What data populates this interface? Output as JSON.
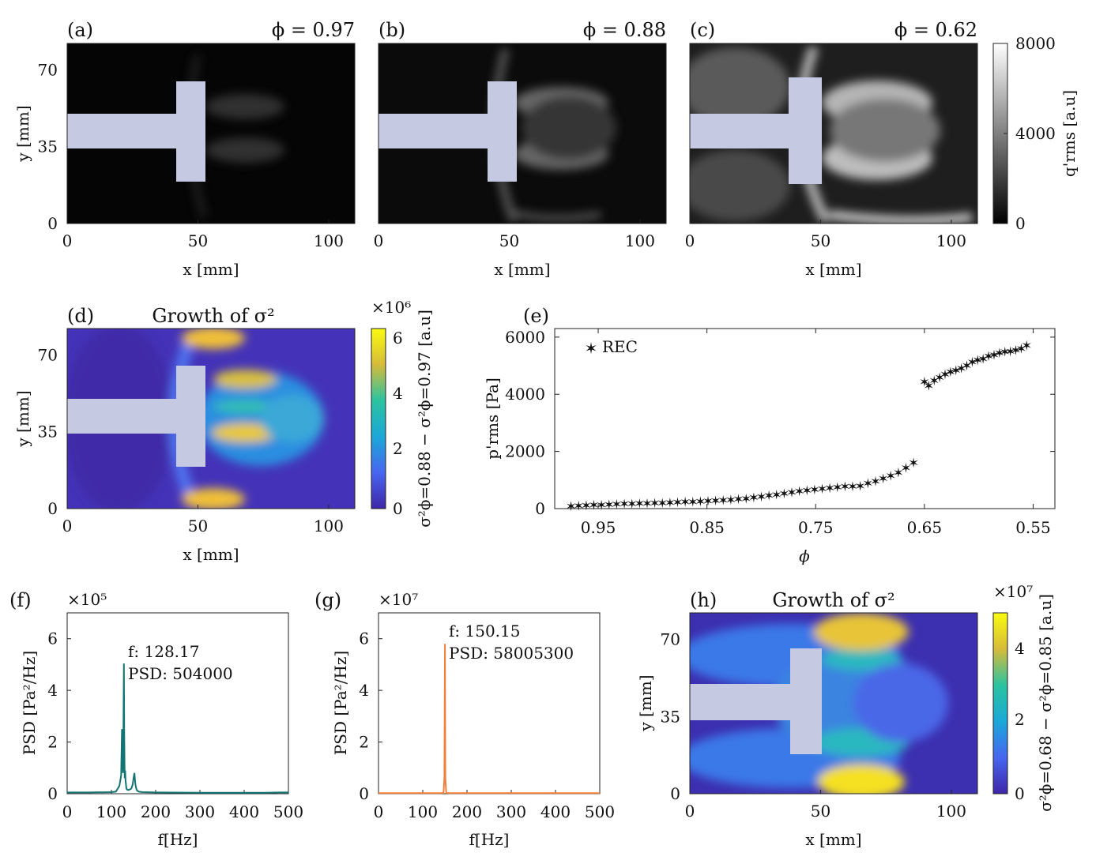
{
  "figure": {
    "panels": {
      "a": {
        "label": "(a)",
        "phi_text": "ϕ = 0.97",
        "xlabel": "x [mm]",
        "ylabel": "y [mm]"
      },
      "b": {
        "label": "(b)",
        "phi_text": "ϕ = 0.88",
        "xlabel": "x [mm]"
      },
      "c": {
        "label": "(c)",
        "phi_text": "ϕ = 0.62",
        "xlabel": "x [mm]",
        "colorbar_label": "q'rms [a.u]",
        "colorbar_ticks": [
          "8000",
          "4000",
          "0"
        ]
      },
      "d": {
        "label": "(d)",
        "title": "Growth of σ²",
        "xlabel": "x [mm]",
        "ylabel": "y [mm]",
        "colorbar_label": "σ²ϕ=0.88 − σ²ϕ=0.97 [a.u]",
        "colorbar_exp": "×10⁶",
        "colorbar_ticks": [
          "6",
          "4",
          "2",
          "0"
        ]
      },
      "e": {
        "label": "(e)",
        "xlabel": "ϕ",
        "ylabel": "p'rms [Pa]",
        "legend": "REC"
      },
      "f": {
        "label": "(f)",
        "xlabel": "f[Hz]",
        "ylabel": "PSD [Pa²/Hz]",
        "exp": "×10⁵",
        "ann_f": "f: 128.17",
        "ann_psd": "PSD: 504000"
      },
      "g": {
        "label": "(g)",
        "xlabel": "f[Hz]",
        "ylabel": "PSD [Pa²/Hz]",
        "exp": "×10⁷",
        "ann_f": "f: 150.15",
        "ann_psd": "PSD: 58005300"
      },
      "h": {
        "label": "(h)",
        "title": "Growth of σ²",
        "xlabel": "x [mm]",
        "ylabel": "y [mm]",
        "colorbar_label": "σ²ϕ=0.68 − σ²ϕ=0.85 [a.u]",
        "colorbar_exp": "×10⁷",
        "colorbar_ticks": [
          "4",
          "2",
          "0"
        ]
      }
    },
    "map_axes": {
      "xticks": [
        "0",
        "50",
        "100"
      ],
      "yticks": [
        "70",
        "35",
        "0"
      ]
    },
    "psd_axes": {
      "xticks": [
        "0",
        "100",
        "200",
        "300",
        "400",
        "500"
      ],
      "yticks": [
        "6",
        "4",
        "2",
        "0"
      ]
    },
    "e_axes": {
      "xticks": [
        "0.95",
        "0.85",
        "0.75",
        "0.65",
        "0.55"
      ],
      "yticks": [
        "6000",
        "4000",
        "2000",
        "0"
      ]
    },
    "colors": {
      "rec": "#137474",
      "psd_f": "#137474",
      "psd_g": "#f07f3c",
      "bluff_body": "#c5cae2"
    }
  },
  "chart_data": [
    {
      "type": "heatmap",
      "panel": "a",
      "title": "ϕ = 0.97",
      "xlabel": "x [mm]",
      "ylabel": "y [mm]",
      "xlim": [
        0,
        110
      ],
      "ylim": [
        0,
        82
      ],
      "colorbar_range": [
        0,
        8000
      ],
      "colorbar_label": "q'rms [a.u]"
    },
    {
      "type": "heatmap",
      "panel": "b",
      "title": "ϕ = 0.88",
      "xlabel": "x [mm]",
      "xlim": [
        0,
        110
      ],
      "ylim": [
        0,
        82
      ],
      "colorbar_range": [
        0,
        8000
      ]
    },
    {
      "type": "heatmap",
      "panel": "c",
      "title": "ϕ = 0.62",
      "xlabel": "x [mm]",
      "xlim": [
        0,
        110
      ],
      "ylim": [
        0,
        82
      ],
      "colorbar_range": [
        0,
        8000
      ],
      "colorbar_label": "q'rms [a.u]"
    },
    {
      "type": "heatmap",
      "panel": "d",
      "title": "Growth of σ²",
      "xlabel": "x [mm]",
      "ylabel": "y [mm]",
      "xlim": [
        0,
        110
      ],
      "ylim": [
        0,
        82
      ],
      "colorbar_range": [
        0,
        6.5
      ],
      "colorbar_exp": "×10⁶"
    },
    {
      "type": "scatter",
      "panel": "e",
      "xlabel": "ϕ",
      "ylabel": "p'rms [Pa]",
      "xlim": [
        0.99,
        0.53
      ],
      "ylim": [
        0,
        6300
      ],
      "legend": [
        "REC"
      ],
      "series": [
        {
          "name": "REC",
          "x": [
            0.975,
            0.968,
            0.961,
            0.954,
            0.947,
            0.94,
            0.933,
            0.926,
            0.919,
            0.912,
            0.905,
            0.898,
            0.891,
            0.884,
            0.877,
            0.87,
            0.863,
            0.856,
            0.849,
            0.842,
            0.835,
            0.828,
            0.821,
            0.814,
            0.807,
            0.8,
            0.793,
            0.786,
            0.779,
            0.772,
            0.765,
            0.758,
            0.751,
            0.744,
            0.737,
            0.73,
            0.723,
            0.716,
            0.709,
            0.702,
            0.695,
            0.688,
            0.681,
            0.674,
            0.667,
            0.66,
            0.65,
            0.646,
            0.641,
            0.636,
            0.631,
            0.626,
            0.621,
            0.616,
            0.611,
            0.606,
            0.601,
            0.596,
            0.591,
            0.586,
            0.581,
            0.576,
            0.571,
            0.566,
            0.561,
            0.556
          ],
          "values": [
            80,
            100,
            110,
            120,
            130,
            140,
            150,
            160,
            170,
            180,
            185,
            190,
            200,
            210,
            220,
            230,
            240,
            250,
            260,
            270,
            290,
            310,
            330,
            350,
            380,
            410,
            450,
            490,
            530,
            570,
            610,
            640,
            660,
            690,
            720,
            750,
            780,
            780,
            790,
            880,
            960,
            1050,
            1150,
            1260,
            1420,
            1600,
            4430,
            4300,
            4480,
            4590,
            4700,
            4780,
            4830,
            4900,
            5000,
            5120,
            5200,
            5240,
            5330,
            5380,
            5440,
            5480,
            5500,
            5540,
            5600,
            5700
          ]
        }
      ]
    },
    {
      "type": "line",
      "panel": "f",
      "xlabel": "f[Hz]",
      "ylabel": "PSD [Pa²/Hz]",
      "xlim": [
        0,
        500
      ],
      "ylim": [
        0,
        7
      ],
      "y_multiplier": "×10⁵",
      "x": [
        0,
        50,
        100,
        110,
        118,
        122,
        124,
        126,
        127,
        128.17,
        129,
        130,
        131,
        132,
        134,
        136,
        140,
        145,
        148,
        150,
        152,
        154,
        156,
        158,
        162,
        170,
        200,
        300,
        400,
        450,
        480,
        490,
        500
      ],
      "values": [
        0.05,
        0.05,
        0.06,
        0.08,
        0.3,
        0.7,
        2.5,
        0.8,
        1.9,
        5.04,
        2.4,
        0.6,
        0.9,
        0.5,
        0.2,
        0.15,
        0.15,
        0.2,
        0.35,
        0.6,
        0.8,
        0.4,
        0.2,
        0.12,
        0.08,
        0.06,
        0.05,
        0.04,
        0.04,
        0.04,
        0.05,
        0.05,
        0.05
      ],
      "annotations": [
        "f: 128.17",
        "PSD: 504000"
      ]
    },
    {
      "type": "line",
      "panel": "g",
      "xlabel": "f[Hz]",
      "ylabel": "PSD [Pa²/Hz]",
      "xlim": [
        0,
        500
      ],
      "ylim": [
        0,
        7
      ],
      "y_multiplier": "×10⁷",
      "x": [
        0,
        100,
        140,
        147,
        149,
        150.15,
        151,
        153,
        160,
        300,
        500
      ],
      "values": [
        0.02,
        0.02,
        0.02,
        0.03,
        0.6,
        5.8,
        0.6,
        0.03,
        0.02,
        0.02,
        0.02
      ],
      "annotations": [
        "f: 150.15",
        "PSD: 58005300"
      ]
    },
    {
      "type": "heatmap",
      "panel": "h",
      "title": "Growth of σ²",
      "xlabel": "x [mm]",
      "ylabel": "y [mm]",
      "xlim": [
        0,
        110
      ],
      "ylim": [
        0,
        82
      ],
      "colorbar_range": [
        0,
        5
      ],
      "colorbar_exp": "×10⁷"
    }
  ]
}
